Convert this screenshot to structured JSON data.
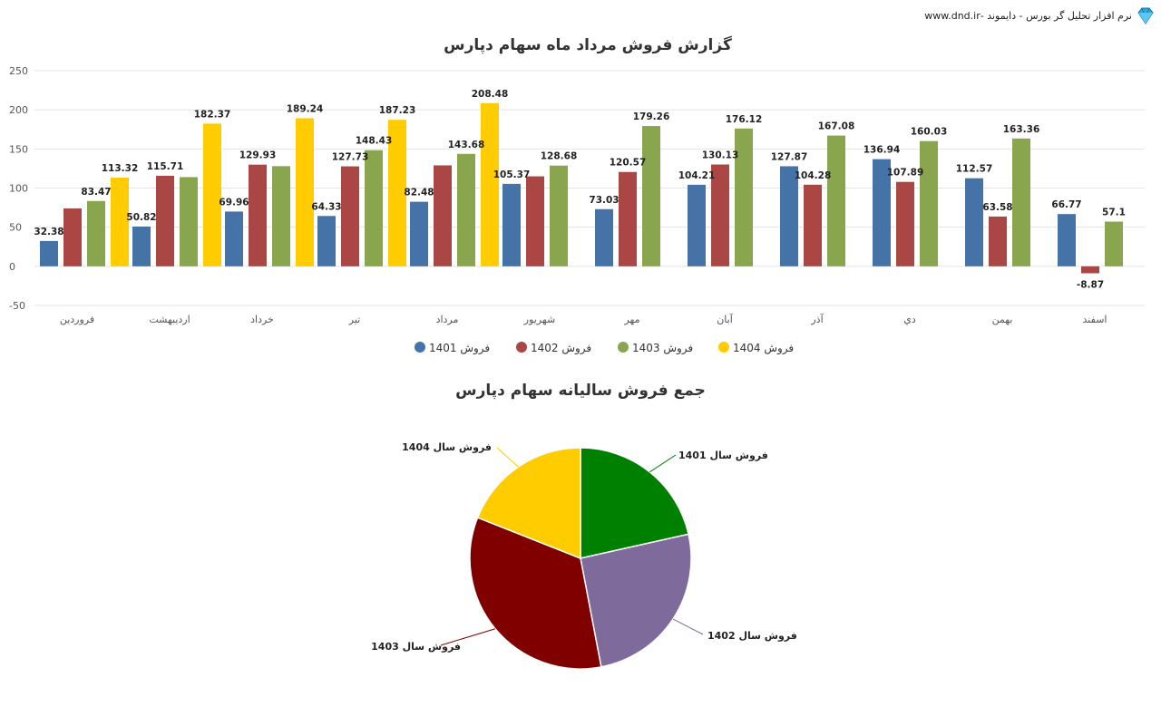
{
  "header": {
    "brand_text": "نرم افزار تحلیل گر بورس - دایموند -www.dnd.ir",
    "logo_icon": "diamond-icon"
  },
  "chart_data": [
    {
      "type": "bar",
      "title": "گزارش فروش مرداد ماه سهام دپارس",
      "xlabel": "",
      "ylabel": "",
      "ylim": [
        -50,
        250
      ],
      "yticks": [
        -50,
        0,
        50,
        100,
        150,
        200,
        250
      ],
      "grid": true,
      "legend_position": "bottom",
      "categories": [
        "فروردین",
        "اردیبهشت",
        "خرداد",
        "تیر",
        "مرداد",
        "شهریور",
        "مهر",
        "آبان",
        "آذر",
        "دي",
        "بهمن",
        "اسفند"
      ],
      "series": [
        {
          "name": "فروش 1401",
          "color": "#4572a7",
          "values": [
            32.38,
            50.82,
            69.96,
            64.33,
            82.48,
            105.37,
            73.03,
            104.21,
            127.87,
            136.94,
            112.57,
            66.77
          ],
          "labels": [
            "32.38",
            "50.82",
            "69.96",
            "64.33",
            "82.48",
            "105.37",
            "73.03",
            "104.21",
            "127.87",
            "136.94",
            "112.57",
            "66.77"
          ]
        },
        {
          "name": "فروش 1402",
          "color": "#aa4643",
          "values": [
            74,
            115.71,
            129.93,
            127.73,
            129,
            115,
            120.57,
            130.13,
            104.28,
            107.89,
            63.58,
            -8.87
          ],
          "labels": [
            "",
            "115.71",
            "129.93",
            "127.73",
            "",
            "",
            "120.57",
            "130.13",
            "104.28",
            "107.89",
            "63.58",
            "-8.87"
          ]
        },
        {
          "name": "فروش 1403",
          "color": "#89a54e",
          "values": [
            83.47,
            114,
            128,
            148.43,
            143.68,
            128.68,
            179.26,
            176.12,
            167.08,
            160.03,
            163.36,
            57.1
          ],
          "labels": [
            "83.47",
            "",
            "",
            "148.43",
            "143.68",
            "128.68",
            "179.26",
            "176.12",
            "167.08",
            "160.03",
            "163.36",
            "57.1"
          ]
        },
        {
          "name": "فروش 1404",
          "color": "#ffcc00",
          "values": [
            113.32,
            182.37,
            189.24,
            187.23,
            208.48,
            null,
            null,
            null,
            null,
            null,
            null,
            null
          ],
          "labels": [
            "113.32",
            "182.37",
            "189.24",
            "187.23",
            "208.48",
            "",
            "",
            "",
            "",
            "",
            "",
            ""
          ]
        }
      ]
    },
    {
      "type": "pie",
      "title": "جمع فروش سالیانه سهام دپارس",
      "slices": [
        {
          "label": "فروش سال 1401",
          "value": 21.5,
          "color": "#008000"
        },
        {
          "label": "فروش سال 1402",
          "value": 25.5,
          "color": "#7f6a9c"
        },
        {
          "label": "فروش سال 1403",
          "value": 34.0,
          "color": "#800000"
        },
        {
          "label": "فروش سال 1404",
          "value": 19.0,
          "color": "#ffcc00"
        }
      ]
    }
  ]
}
